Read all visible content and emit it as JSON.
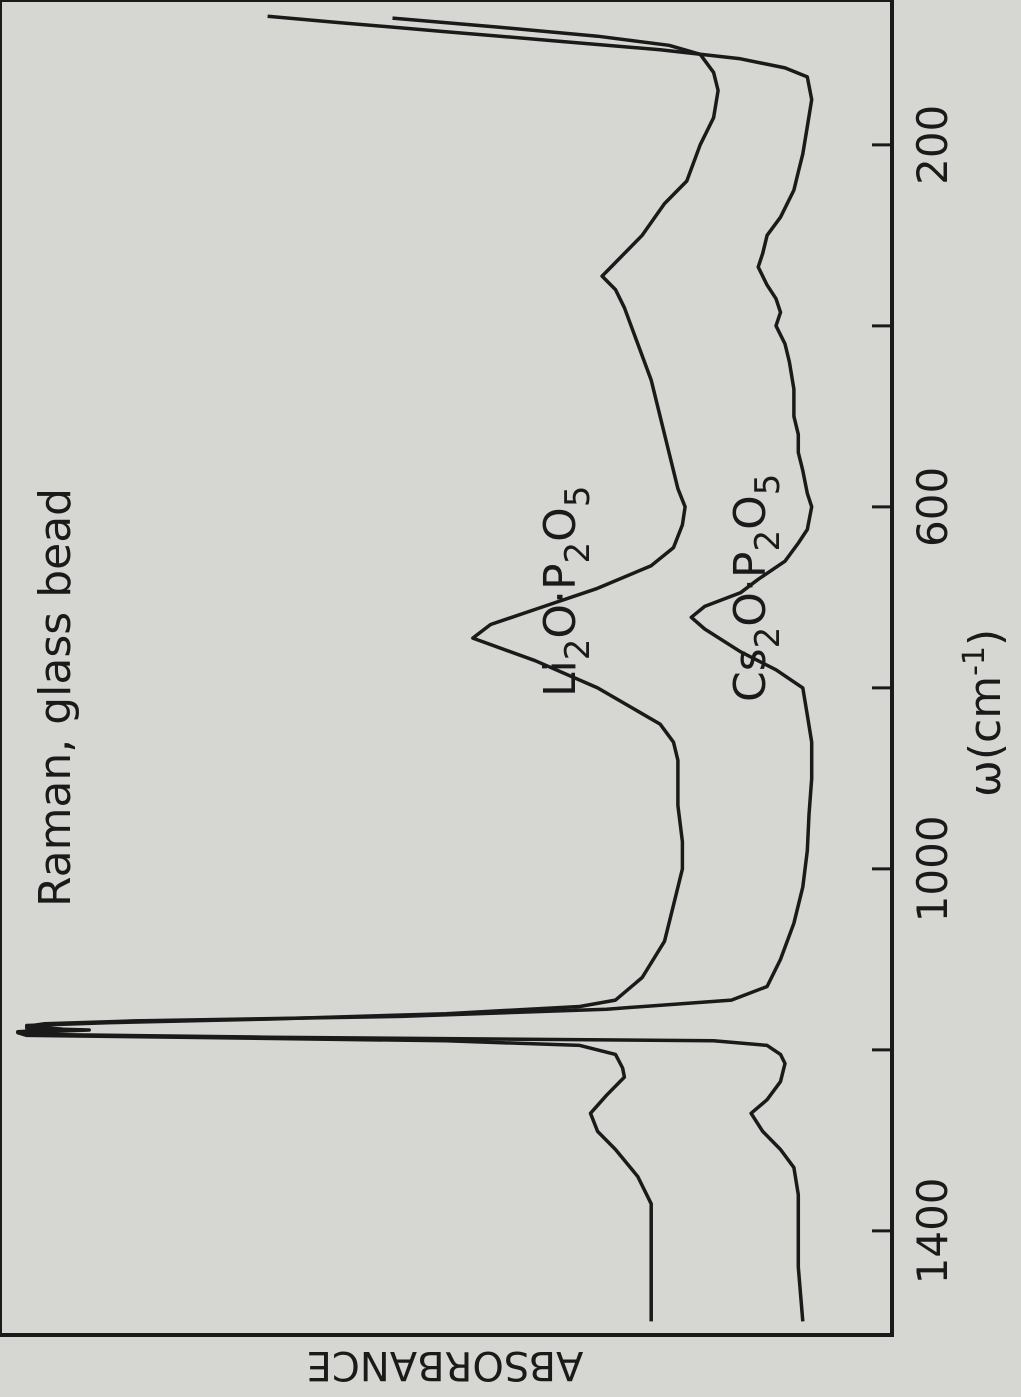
{
  "chart_data": {
    "type": "line",
    "title": "Raman, glass bead",
    "xlabel": "ω(cm",
    "xlabel_exponent": "-1",
    "xlabel_close": ")",
    "ylabel": "ABSORBANCE",
    "x_ticks": [
      200,
      400,
      600,
      800,
      1000,
      1200,
      1400
    ],
    "x_tick_labels": [
      {
        "value": 200,
        "text": "200"
      },
      {
        "value": 600,
        "text": "600"
      },
      {
        "value": 1000,
        "text": "1000"
      },
      {
        "value": 1400,
        "text": "1400"
      }
    ],
    "xlim": [
      1515,
      40
    ],
    "ylim": [
      0,
      1
    ],
    "grid": false,
    "series": [
      {
        "name_parts": [
          "Li",
          "2",
          "O·P",
          "2",
          "O",
          "5"
        ],
        "points": [
          [
            1500,
            0.27
          ],
          [
            1440,
            0.27
          ],
          [
            1400,
            0.27
          ],
          [
            1370,
            0.27
          ],
          [
            1340,
            0.285
          ],
          [
            1310,
            0.31
          ],
          [
            1290,
            0.33
          ],
          [
            1270,
            0.338
          ],
          [
            1250,
            0.32
          ],
          [
            1230,
            0.3
          ],
          [
            1220,
            0.302
          ],
          [
            1205,
            0.31
          ],
          [
            1195,
            0.35
          ],
          [
            1190,
            0.5
          ],
          [
            1186,
            0.8
          ],
          [
            1184,
            0.97
          ],
          [
            1181,
            0.98
          ],
          [
            1178,
            0.9
          ],
          [
            1176,
            0.97
          ],
          [
            1173,
            0.97
          ],
          [
            1170,
            0.88
          ],
          [
            1166,
            0.7
          ],
          [
            1160,
            0.5
          ],
          [
            1152,
            0.35
          ],
          [
            1145,
            0.31
          ],
          [
            1120,
            0.28
          ],
          [
            1080,
            0.255
          ],
          [
            1040,
            0.245
          ],
          [
            1000,
            0.235
          ],
          [
            970,
            0.235
          ],
          [
            930,
            0.24
          ],
          [
            900,
            0.24
          ],
          [
            880,
            0.24
          ],
          [
            860,
            0.245
          ],
          [
            840,
            0.26
          ],
          [
            800,
            0.33
          ],
          [
            770,
            0.4
          ],
          [
            745,
            0.47
          ],
          [
            730,
            0.45
          ],
          [
            710,
            0.39
          ],
          [
            690,
            0.33
          ],
          [
            665,
            0.27
          ],
          [
            645,
            0.245
          ],
          [
            620,
            0.235
          ],
          [
            600,
            0.232
          ],
          [
            580,
            0.24
          ],
          [
            540,
            0.25
          ],
          [
            500,
            0.26
          ],
          [
            460,
            0.27
          ],
          [
            420,
            0.285
          ],
          [
            380,
            0.3
          ],
          [
            360,
            0.31
          ],
          [
            345,
            0.325
          ],
          [
            330,
            0.31
          ],
          [
            300,
            0.28
          ],
          [
            265,
            0.255
          ],
          [
            240,
            0.23
          ],
          [
            200,
            0.215
          ],
          [
            170,
            0.2
          ],
          [
            140,
            0.195
          ],
          [
            120,
            0.2
          ],
          [
            100,
            0.215
          ],
          [
            90,
            0.25
          ],
          [
            80,
            0.33
          ],
          [
            70,
            0.44
          ],
          [
            60,
            0.56
          ]
        ]
      },
      {
        "name_parts": [
          "Cs",
          "2",
          "O·P",
          "2",
          "O",
          "5"
        ],
        "points": [
          [
            1500,
            0.1
          ],
          [
            1440,
            0.105
          ],
          [
            1400,
            0.105
          ],
          [
            1360,
            0.105
          ],
          [
            1330,
            0.11
          ],
          [
            1310,
            0.125
          ],
          [
            1290,
            0.145
          ],
          [
            1270,
            0.158
          ],
          [
            1255,
            0.14
          ],
          [
            1235,
            0.125
          ],
          [
            1215,
            0.12
          ],
          [
            1205,
            0.125
          ],
          [
            1195,
            0.14
          ],
          [
            1190,
            0.2
          ],
          [
            1186,
            0.7
          ],
          [
            1183,
            0.95
          ],
          [
            1180,
            0.98
          ],
          [
            1177,
            0.93
          ],
          [
            1174,
            0.97
          ],
          [
            1171,
            0.95
          ],
          [
            1168,
            0.85
          ],
          [
            1163,
            0.55
          ],
          [
            1155,
            0.32
          ],
          [
            1145,
            0.18
          ],
          [
            1130,
            0.14
          ],
          [
            1100,
            0.125
          ],
          [
            1060,
            0.11
          ],
          [
            1020,
            0.1
          ],
          [
            980,
            0.095
          ],
          [
            940,
            0.093
          ],
          [
            900,
            0.09
          ],
          [
            860,
            0.09
          ],
          [
            830,
            0.095
          ],
          [
            800,
            0.1
          ],
          [
            780,
            0.13
          ],
          [
            760,
            0.17
          ],
          [
            735,
            0.21
          ],
          [
            722,
            0.225
          ],
          [
            710,
            0.21
          ],
          [
            695,
            0.17
          ],
          [
            680,
            0.15
          ],
          [
            660,
            0.12
          ],
          [
            640,
            0.105
          ],
          [
            625,
            0.095
          ],
          [
            600,
            0.09
          ],
          [
            585,
            0.095
          ],
          [
            560,
            0.1
          ],
          [
            540,
            0.105
          ],
          [
            520,
            0.105
          ],
          [
            500,
            0.11
          ],
          [
            470,
            0.11
          ],
          [
            440,
            0.115
          ],
          [
            420,
            0.12
          ],
          [
            400,
            0.13
          ],
          [
            385,
            0.125
          ],
          [
            370,
            0.13
          ],
          [
            355,
            0.14
          ],
          [
            335,
            0.15
          ],
          [
            320,
            0.145
          ],
          [
            300,
            0.14
          ],
          [
            280,
            0.125
          ],
          [
            250,
            0.11
          ],
          [
            230,
            0.105
          ],
          [
            210,
            0.1
          ],
          [
            180,
            0.095
          ],
          [
            150,
            0.09
          ],
          [
            125,
            0.095
          ],
          [
            115,
            0.12
          ],
          [
            105,
            0.17
          ],
          [
            95,
            0.26
          ],
          [
            85,
            0.38
          ],
          [
            75,
            0.5
          ],
          [
            65,
            0.62
          ],
          [
            58,
            0.7
          ]
        ]
      }
    ]
  }
}
